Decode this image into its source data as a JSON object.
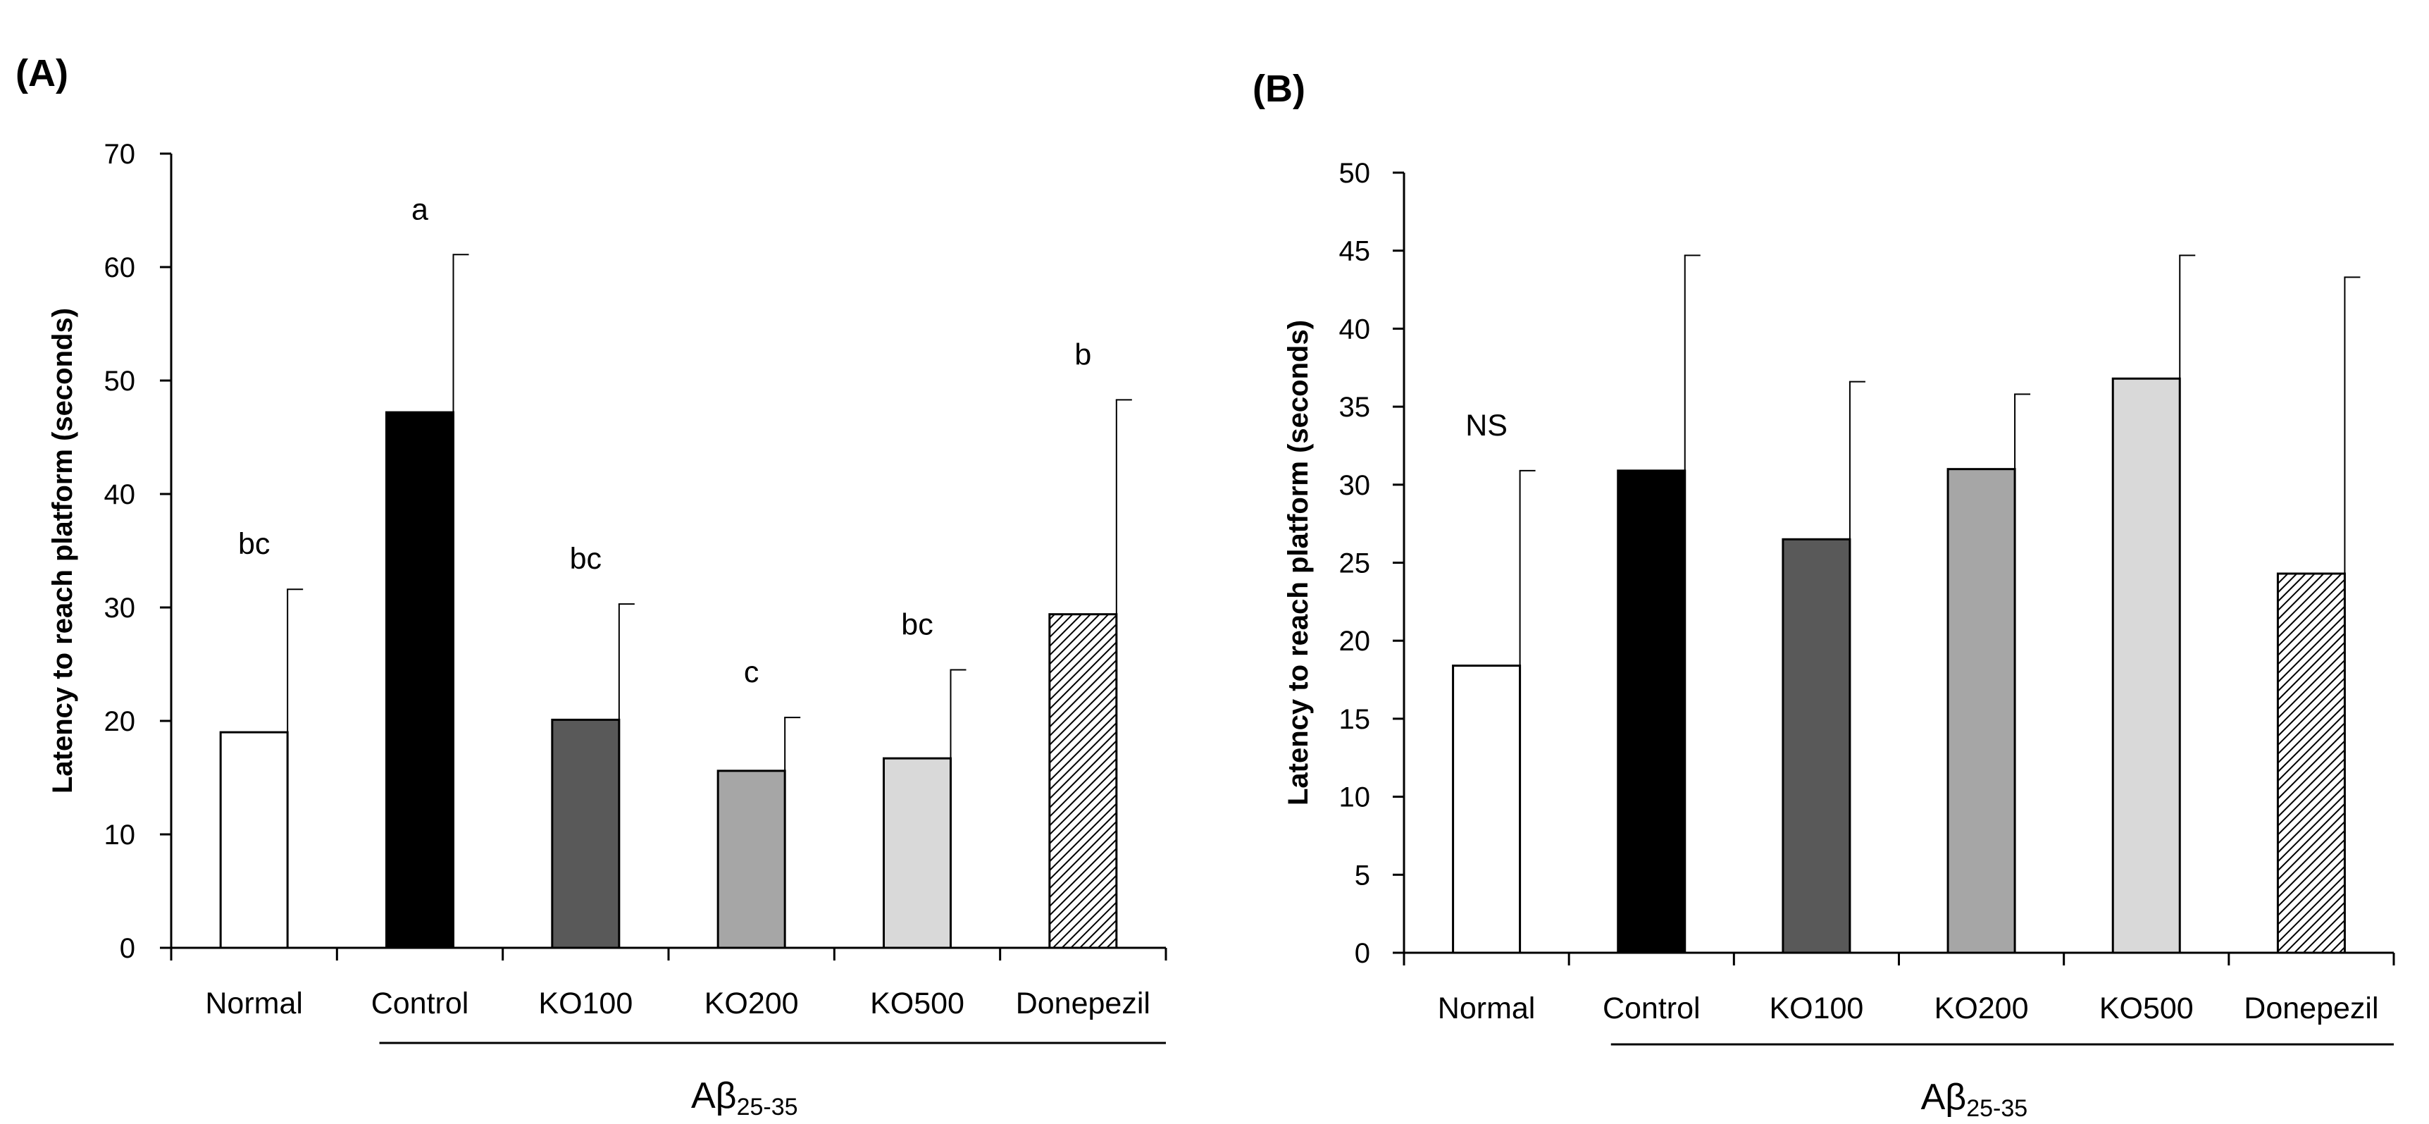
{
  "chart_data": [
    {
      "panel": "(A)",
      "type": "bar",
      "title": "",
      "xlabel": "",
      "ylabel": "Latency to reach platform (seconds)",
      "ylim": [
        0,
        70
      ],
      "yticks": [
        0,
        10,
        20,
        30,
        40,
        50,
        60,
        70
      ],
      "categories": [
        "Normal",
        "Control",
        "KO100",
        "KO200",
        "KO500",
        "Donepezil"
      ],
      "values": [
        19,
        47.2,
        20.1,
        15.6,
        16.7,
        29.4
      ],
      "errors": [
        12.6,
        13.9,
        10.2,
        4.7,
        7.8,
        18.9
      ],
      "significance": [
        "bc",
        "a",
        "bc",
        "c",
        "bc",
        "b"
      ],
      "fills": [
        "white",
        "black",
        "dark-gray",
        "medium-gray",
        "light-gray",
        "hatched"
      ],
      "group": {
        "label": "Aβ",
        "sub": "25-35",
        "categories": [
          "Control",
          "KO100",
          "KO200",
          "KO500",
          "Donepezil"
        ]
      },
      "grid": false,
      "legend": "none"
    },
    {
      "panel": "(B)",
      "type": "bar",
      "title": "",
      "xlabel": "",
      "ylabel": "Latency to reach platform (seconds)",
      "ylim": [
        0,
        50
      ],
      "yticks": [
        0,
        5,
        10,
        15,
        20,
        25,
        30,
        35,
        40,
        45,
        50
      ],
      "categories": [
        "Normal",
        "Control",
        "KO100",
        "KO200",
        "KO500",
        "Donepezil"
      ],
      "values": [
        18.4,
        30.9,
        26.5,
        31,
        36.8,
        24.3
      ],
      "errors": [
        12.5,
        13.8,
        10.1,
        4.8,
        7.9,
        19
      ],
      "significance": [
        "NS",
        "",
        "",
        "",
        "",
        ""
      ],
      "fills": [
        "white",
        "black",
        "dark-gray",
        "medium-gray",
        "light-gray",
        "hatched"
      ],
      "group": {
        "label": "Aβ",
        "sub": "25-35",
        "categories": [
          "Control",
          "KO100",
          "KO200",
          "KO500",
          "Donepezil"
        ]
      },
      "grid": false,
      "legend": "none"
    }
  ],
  "colors": {
    "white": "#ffffff",
    "black": "#000000",
    "dark-gray": "#595959",
    "medium-gray": "#a6a6a6",
    "light-gray": "#d9d9d9",
    "hatched": "#000000"
  }
}
